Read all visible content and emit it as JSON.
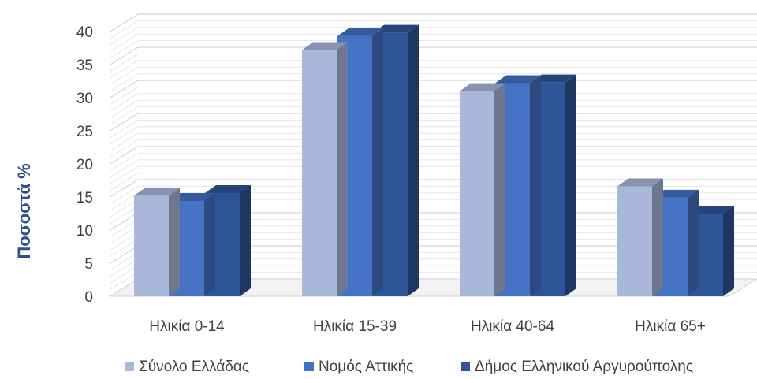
{
  "chart_data": {
    "type": "bar",
    "three_d": true,
    "ylabel": "Ποσοστά %",
    "ylim": [
      0,
      40
    ],
    "yticks": [
      0,
      5,
      10,
      15,
      20,
      25,
      30,
      35,
      40
    ],
    "grid": true,
    "legend_position": "bottom",
    "categories": [
      "Ηλικία 0-14",
      "Ηλικία 15-39",
      "Ηλικία 40-64",
      "Ηλικία 65+"
    ],
    "series": [
      {
        "name": "Σύνολο Ελλάδας",
        "color": "#a9b7db",
        "values": [
          15.2,
          37.2,
          31.0,
          16.6
        ]
      },
      {
        "name": "Νομός Αττικής",
        "color": "#4472c4",
        "values": [
          14.4,
          39.3,
          32.2,
          14.9
        ]
      },
      {
        "name": "Δήμος Ελληνικού Αργυρούπολης",
        "color": "#2e5597",
        "values": [
          15.6,
          39.8,
          32.3,
          12.5
        ]
      }
    ]
  }
}
